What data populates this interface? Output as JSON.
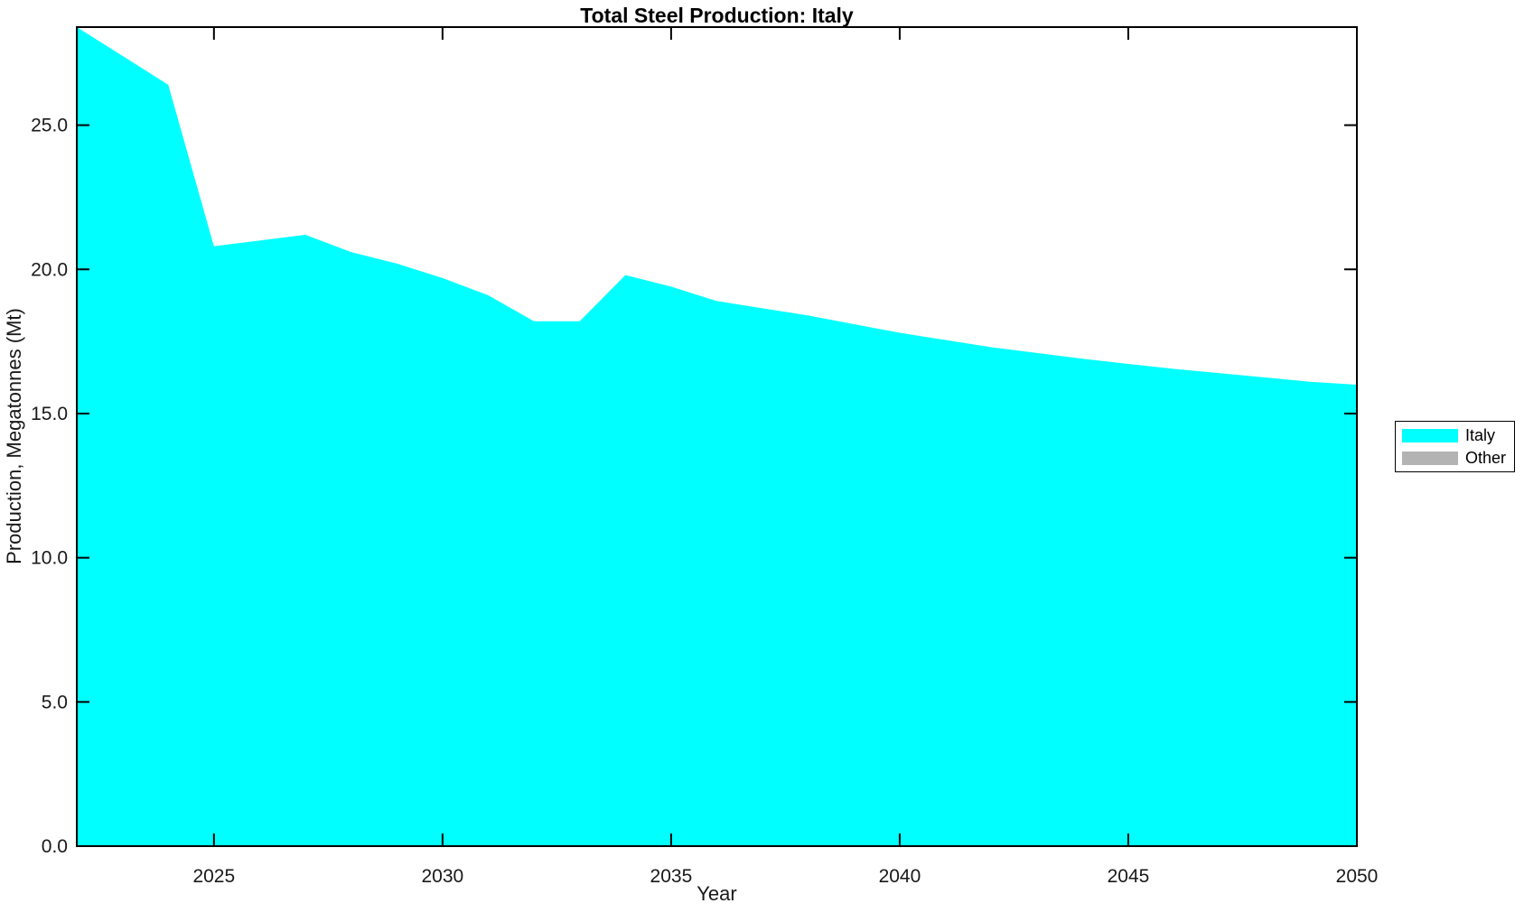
{
  "figure": {
    "background": "#ffffff"
  },
  "chart_data": {
    "type": "area",
    "title": "Total Steel Production: Italy",
    "xlabel": "Year",
    "ylabel": "Production, Megatonnes (Mt)",
    "xlim": [
      2022,
      2050
    ],
    "ylim": [
      0,
      28.4
    ],
    "x_ticks": [
      2025,
      2030,
      2035,
      2040,
      2045,
      2050
    ],
    "y_ticks": [
      0,
      5,
      10,
      15,
      20,
      25
    ],
    "y_tick_labels": [
      "0.0",
      "5.0",
      "10.0",
      "15.0",
      "20.0",
      "25.0"
    ],
    "grid": false,
    "box": true,
    "legend_position": "right-outside",
    "axis_color": "#000000",
    "text_color": "#191919",
    "x": [
      2022,
      2023,
      2024,
      2025,
      2026,
      2027,
      2028,
      2029,
      2030,
      2031,
      2032,
      2033,
      2034,
      2035,
      2036,
      2037,
      2038,
      2039,
      2040,
      2041,
      2042,
      2043,
      2044,
      2045,
      2046,
      2047,
      2048,
      2049,
      2050
    ],
    "series": [
      {
        "name": "Italy",
        "color": "#00ffff",
        "values": [
          28.4,
          27.4,
          26.4,
          20.8,
          21.0,
          21.2,
          20.6,
          20.2,
          19.7,
          19.1,
          18.2,
          18.2,
          19.8,
          19.4,
          18.9,
          18.65,
          18.4,
          18.1,
          17.8,
          17.55,
          17.3,
          17.1,
          16.9,
          16.72,
          16.55,
          16.4,
          16.25,
          16.1,
          16.0
        ]
      }
    ],
    "legend": [
      {
        "label": "Italy",
        "color": "#00ffff"
      },
      {
        "label": "Other",
        "color": "#b3b3b3"
      }
    ]
  }
}
